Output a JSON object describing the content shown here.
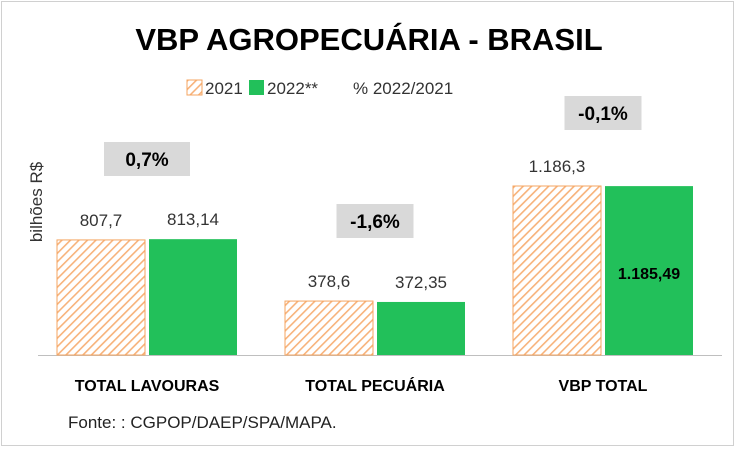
{
  "chart_data": {
    "type": "bar",
    "title": "VBP AGROPECUÁRIA  - BRASIL",
    "ylabel": "bilhões R$",
    "ylim": [
      0,
      1186.3
    ],
    "categories": [
      "TOTAL LAVOURAS",
      "TOTAL PECUÁRIA",
      "VBP TOTAL"
    ],
    "series": [
      {
        "name": "2021",
        "values": [
          807.7,
          378.6,
          1186.3
        ],
        "labels": [
          "807,7",
          "378,6",
          "1.186,3"
        ]
      },
      {
        "name": "2022**",
        "values": [
          813.14,
          372.35,
          1185.49
        ],
        "labels": [
          "813,14",
          "372,35",
          "1.185,49"
        ]
      }
    ],
    "change_series": {
      "name": "% 2022/2021",
      "labels": [
        "0,7%",
        "-1,6%",
        "-0,1%"
      ]
    },
    "legend_position": "top",
    "grid": false,
    "source": "Fonte: : CGPOP/DAEP/SPA/MAPA."
  },
  "colors": {
    "series_2021_stroke": "#f4a460",
    "series_2021_hatch": "#f7b27a",
    "series_2022": "#22c05a",
    "pct_box": "#d9d9d9",
    "axis": "#bfbfbf"
  }
}
